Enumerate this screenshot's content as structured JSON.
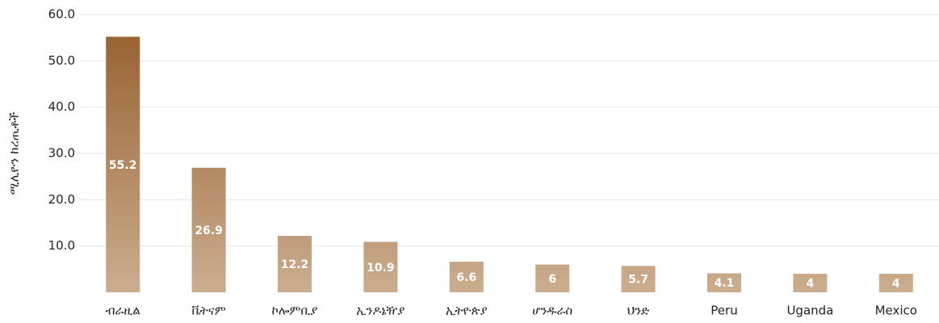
{
  "chart_data": {
    "type": "bar",
    "y_label": "ሚሊዮን ከረጢቶች",
    "categories": [
      "ብራዚል",
      "ቬትናም",
      "ኮሎምቢያ",
      "ኢንዶኔዥያ",
      "ኢትዮጵያ",
      "ሆንዱራስ",
      "ህንድ",
      "Peru",
      "Uganda",
      "Mexico"
    ],
    "values": [
      55.2,
      26.9,
      12.2,
      10.9,
      6.6,
      6.0,
      5.7,
      4.1,
      4.0,
      4.0
    ],
    "gradient": [
      "#9a6434",
      "#cbad8e"
    ],
    "ylim": [
      0,
      60
    ],
    "yticks": [
      {
        "value": 10,
        "label": "10.0"
      },
      {
        "value": 20,
        "label": "20.0"
      },
      {
        "value": 30,
        "label": "30.0"
      },
      {
        "value": 40,
        "label": "40.0"
      },
      {
        "value": 50,
        "label": "50.0"
      },
      {
        "value": 60,
        "label": "60.0"
      }
    ],
    "grid": true
  }
}
